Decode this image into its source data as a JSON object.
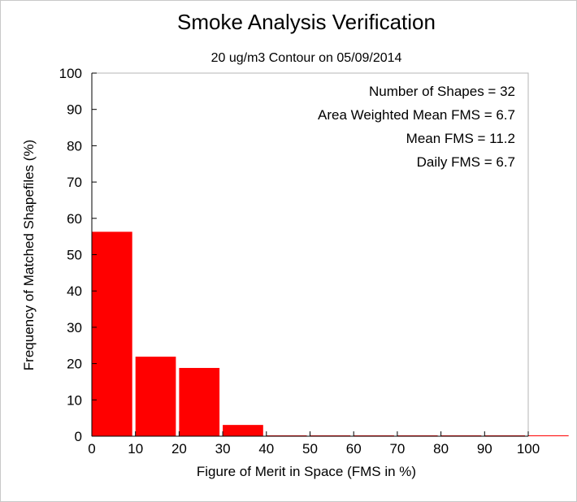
{
  "chart_data": {
    "type": "bar",
    "title": "Smoke Analysis Verification",
    "subtitle": "20 ug/m3 Contour on 05/09/2014",
    "xlabel": "Figure of Merit in Space (FMS in %)",
    "ylabel": "Frequency of Matched Shapefiles (%)",
    "xlim": [
      0,
      100
    ],
    "ylim": [
      0,
      100
    ],
    "xticks": [
      "0",
      "10",
      "20",
      "30",
      "40",
      "50",
      "60",
      "70",
      "80",
      "90",
      "100"
    ],
    "yticks": [
      "0",
      "10",
      "20",
      "30",
      "40",
      "50",
      "60",
      "70",
      "80",
      "90",
      "100"
    ],
    "bins": [
      {
        "x0": 0,
        "x1": 10,
        "value": 56.3
      },
      {
        "x0": 10,
        "x1": 20,
        "value": 21.9
      },
      {
        "x0": 20,
        "x1": 30,
        "value": 18.8
      },
      {
        "x0": 30,
        "x1": 40,
        "value": 3.1
      },
      {
        "x0": 40,
        "x1": 50,
        "value": 0
      },
      {
        "x0": 50,
        "x1": 60,
        "value": 0
      },
      {
        "x0": 60,
        "x1": 70,
        "value": 0
      },
      {
        "x0": 70,
        "x1": 80,
        "value": 0
      },
      {
        "x0": 80,
        "x1": 90,
        "value": 0
      },
      {
        "x0": 90,
        "x1": 100,
        "value": 0
      },
      {
        "x0": 100,
        "x1": 110,
        "value": 0
      }
    ],
    "bar_color": "#ff0000",
    "grid": false,
    "annotations": [
      "Number of Shapes = 32",
      "Area Weighted Mean FMS = 6.7",
      "Mean FMS = 11.2",
      "Daily FMS = 6.7"
    ]
  }
}
